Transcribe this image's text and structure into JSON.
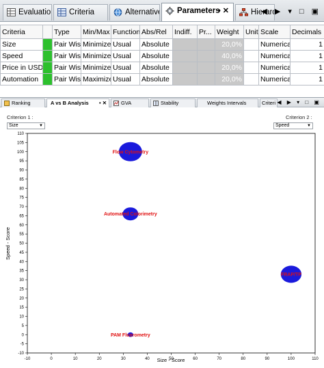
{
  "top_tabs": [
    {
      "label": "Evaluations",
      "icon": "table-icon"
    },
    {
      "label": "Criteria",
      "icon": "table-icon"
    },
    {
      "label": "Alternatives",
      "icon": "globe-icon"
    },
    {
      "label": "Parameters",
      "icon": "gear-icon",
      "active": true,
      "extra": "• ✕"
    },
    {
      "label": "Hierarchy",
      "icon": "hierarchy-icon"
    }
  ],
  "top_controls": "◀ ▶ ▾ □ ▣",
  "table": {
    "headers": [
      "Criteria",
      "",
      "Type",
      "Min/Max",
      "Function",
      "Abs/Rel",
      "Indiff.",
      "Pr...",
      "Weight",
      "Unit",
      "Scale",
      "Decimals"
    ],
    "rows": [
      {
        "criteria": "Size",
        "type": "Pair Wise",
        "minmax": "Minimize",
        "function": "Usual",
        "absrel": "Absolute",
        "weight": "20,0%",
        "unit": "",
        "scale": "Numerical",
        "decimals": "1"
      },
      {
        "criteria": "Speed",
        "type": "Pair Wise",
        "minmax": "Minimize",
        "function": "Usual",
        "absrel": "Absolute",
        "weight": "40,0%",
        "unit": "",
        "scale": "Numerical",
        "decimals": "1"
      },
      {
        "criteria": "Price in USD",
        "type": "Pair Wise",
        "minmax": "Minimize",
        "function": "Usual",
        "absrel": "Absolute",
        "weight": "20,0%",
        "unit": "",
        "scale": "Numerical",
        "decimals": "1"
      },
      {
        "criteria": "Automation",
        "type": "Pair Wise",
        "minmax": "Maximize",
        "function": "Usual",
        "absrel": "Absolute",
        "weight": "20,0%",
        "unit": "",
        "scale": "Numerical",
        "decimals": "1"
      }
    ]
  },
  "sub_tabs": [
    {
      "label": "Ranking"
    },
    {
      "label": "A vs B Analysis",
      "active": true
    },
    {
      "label": "GVA"
    },
    {
      "label": "Stability"
    },
    {
      "label": "Weights Intervals"
    },
    {
      "label": "Criteri"
    }
  ],
  "sub_controls": "◀ ▶ ▾ □ ▣",
  "criterion1": {
    "label": "Criterion 1 :",
    "value": "Size"
  },
  "criterion2": {
    "label": "Criterion 2 :",
    "value": "Speed"
  },
  "colors": {
    "point": "#1a1adc",
    "point_label": "#e01010",
    "green": "#2dc02d"
  },
  "chart_data": {
    "type": "scatter",
    "xlabel": "Size - Score",
    "ylabel": "Speed - Score",
    "xlim": [
      -10,
      110
    ],
    "ylim": [
      -10,
      110
    ],
    "xticks": [
      -10,
      0,
      10,
      20,
      30,
      40,
      50,
      60,
      70,
      80,
      90,
      100,
      110
    ],
    "yticks": [
      -10,
      -5,
      0,
      5,
      10,
      15,
      20,
      25,
      30,
      35,
      40,
      45,
      50,
      55,
      60,
      65,
      70,
      75,
      80,
      85,
      90,
      95,
      100,
      105,
      110
    ],
    "grid": false,
    "points": [
      {
        "label": "Flow Cytometry",
        "x": 33,
        "y": 100,
        "size": 8
      },
      {
        "label": "Automated Colorimetry",
        "x": 33,
        "y": 66,
        "size": 5
      },
      {
        "label": "FRAP/TP",
        "x": 100,
        "y": 33,
        "size": 7
      },
      {
        "label": "PAM Fluorometry",
        "x": 33,
        "y": 0,
        "size": 1
      }
    ]
  }
}
